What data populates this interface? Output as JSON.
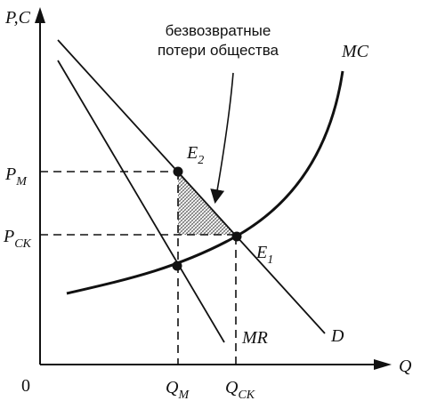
{
  "axes": {
    "y_label": "P,C",
    "x_label": "Q",
    "origin": "0"
  },
  "price_labels": [
    {
      "base": "P",
      "sub": "M"
    },
    {
      "base": "P",
      "sub": "СК"
    }
  ],
  "quantity_labels": [
    {
      "base": "Q",
      "sub": "M"
    },
    {
      "base": "Q",
      "sub": "СК"
    }
  ],
  "points": [
    {
      "base": "E",
      "sub": "2"
    },
    {
      "base": "E",
      "sub": "1"
    }
  ],
  "curves": {
    "mc": "MC",
    "mr": "MR",
    "d": "D"
  },
  "annotation": [
    "безвозвратные",
    "потери общества"
  ]
}
